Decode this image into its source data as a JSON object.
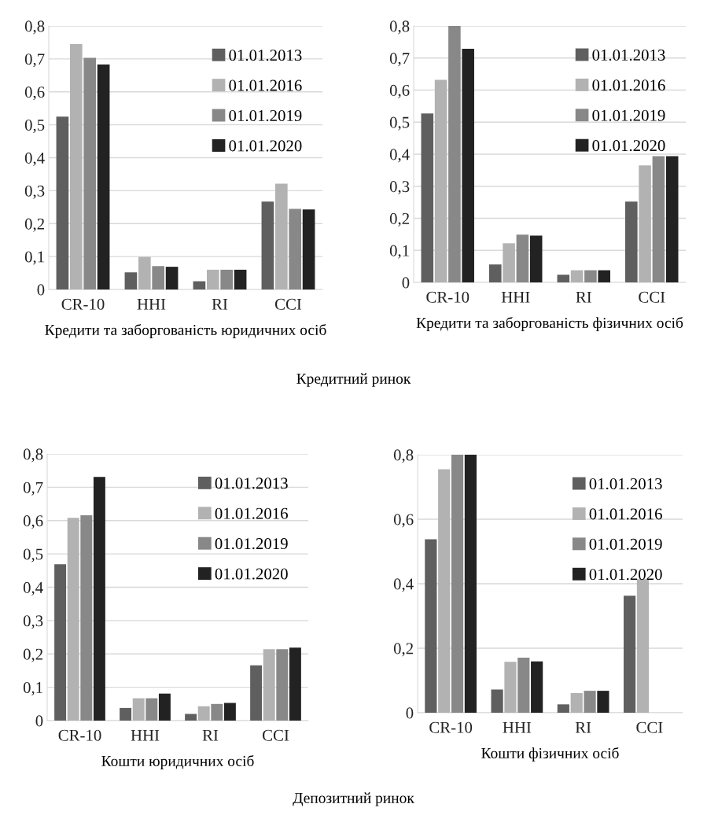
{
  "chart_data": [
    {
      "type": "bar",
      "xlabel": "Кредити та заборгованість юридичних осіб",
      "categories": [
        "CR-10",
        "HHI",
        "RI",
        "CCI"
      ],
      "ylim": [
        0,
        0.8
      ],
      "yticks": [
        {
          "value": 0,
          "label": "0"
        },
        {
          "value": 0.1,
          "label": "0,1"
        },
        {
          "value": 0.2,
          "label": "0,2"
        },
        {
          "value": 0.3,
          "label": "0,3"
        },
        {
          "value": 0.4,
          "label": "0,4"
        },
        {
          "value": 0.5,
          "label": "0,5"
        },
        {
          "value": 0.6,
          "label": "0,6"
        },
        {
          "value": 0.7,
          "label": "0,7"
        },
        {
          "value": 0.8,
          "label": "0,8"
        }
      ],
      "grid": "y",
      "legend": "top right",
      "annotations": [
        "Кредитний ринок"
      ],
      "series": [
        {
          "name": "01.01.2013",
          "color": "#5f5f5f",
          "values": [
            0.525,
            0.052,
            0.025,
            0.267
          ]
        },
        {
          "name": "01.01.2016",
          "color": "#b2b2b2",
          "values": [
            0.745,
            0.099,
            0.06,
            0.321
          ]
        },
        {
          "name": "01.01.2019",
          "color": "#888888",
          "values": [
            0.703,
            0.071,
            0.06,
            0.245
          ]
        },
        {
          "name": "01.01.2020",
          "color": "#222222",
          "values": [
            0.683,
            0.069,
            0.06,
            0.243
          ]
        }
      ]
    },
    {
      "type": "bar",
      "xlabel": "Кредити та заборгованість фізичних осіб",
      "categories": [
        "CR-10",
        "HHI",
        "RI",
        "CCI"
      ],
      "ylim": [
        0,
        0.8
      ],
      "yticks": [
        {
          "value": 0,
          "label": "0"
        },
        {
          "value": 0.1,
          "label": "0,1"
        },
        {
          "value": 0.2,
          "label": "0,2"
        },
        {
          "value": 0.3,
          "label": "0,3"
        },
        {
          "value": 0.4,
          "label": "0,4"
        },
        {
          "value": 0.5,
          "label": "0,5"
        },
        {
          "value": 0.6,
          "label": "0,6"
        },
        {
          "value": 0.7,
          "label": "0,7"
        },
        {
          "value": 0.8,
          "label": "0,8"
        }
      ],
      "grid": "y",
      "legend": "top right",
      "series": [
        {
          "name": "01.01.2013",
          "color": "#5f5f5f",
          "values": [
            0.527,
            0.056,
            0.024,
            0.252
          ]
        },
        {
          "name": "01.01.2016",
          "color": "#b2b2b2",
          "values": [
            0.632,
            0.122,
            0.038,
            0.365
          ]
        },
        {
          "name": "01.01.2019",
          "color": "#888888",
          "values": [
            0.8,
            0.149,
            0.038,
            0.394
          ]
        },
        {
          "name": "01.01.2020",
          "color": "#222222",
          "values": [
            0.729,
            0.146,
            0.038,
            0.394
          ]
        }
      ]
    },
    {
      "type": "bar",
      "xlabel": "Кошти юридичних осіб",
      "categories": [
        "CR-10",
        "HHI",
        "RI",
        "CCI"
      ],
      "ylim": [
        0,
        0.8
      ],
      "yticks": [
        {
          "value": 0,
          "label": "0"
        },
        {
          "value": 0.1,
          "label": "0,1"
        },
        {
          "value": 0.2,
          "label": "0,2"
        },
        {
          "value": 0.3,
          "label": "0,3"
        },
        {
          "value": 0.4,
          "label": "0,4"
        },
        {
          "value": 0.5,
          "label": "0,5"
        },
        {
          "value": 0.6,
          "label": "0,6"
        },
        {
          "value": 0.7,
          "label": "0,7"
        },
        {
          "value": 0.8,
          "label": "0,8"
        }
      ],
      "grid": "y",
      "legend": "top right",
      "annotations": [
        "Депозитний ринок"
      ],
      "series": [
        {
          "name": "01.01.2013",
          "color": "#5f5f5f",
          "values": [
            0.469,
            0.038,
            0.02,
            0.166
          ]
        },
        {
          "name": "01.01.2016",
          "color": "#b2b2b2",
          "values": [
            0.608,
            0.067,
            0.043,
            0.214
          ]
        },
        {
          "name": "01.01.2019",
          "color": "#888888",
          "values": [
            0.616,
            0.067,
            0.05,
            0.214
          ]
        },
        {
          "name": "01.01.2020",
          "color": "#222222",
          "values": [
            0.731,
            0.081,
            0.053,
            0.219
          ]
        }
      ]
    },
    {
      "type": "bar",
      "xlabel": "Кошти фізичних осіб",
      "categories": [
        "CR-10",
        "HHI",
        "RI",
        "CCI"
      ],
      "ylim": [
        0,
        0.8
      ],
      "yticks": [
        {
          "value": 0,
          "label": "0"
        },
        {
          "value": 0.2,
          "label": "0,2"
        },
        {
          "value": 0.4,
          "label": "0,4"
        },
        {
          "value": 0.6,
          "label": "0,6"
        },
        {
          "value": 0.8,
          "label": "0,8"
        }
      ],
      "grid": "y",
      "legend": "top right",
      "series": [
        {
          "name": "01.01.2013",
          "color": "#5f5f5f",
          "values": [
            0.538,
            0.072,
            0.026,
            0.363
          ]
        },
        {
          "name": "01.01.2016",
          "color": "#b2b2b2",
          "values": [
            0.755,
            0.158,
            0.061,
            0.414
          ]
        },
        {
          "name": "01.01.2019",
          "color": "#888888",
          "values": [
            0.8,
            0.171,
            0.068,
            null
          ]
        },
        {
          "name": "01.01.2020",
          "color": "#222222",
          "values": [
            0.8,
            0.159,
            0.068,
            null
          ]
        }
      ]
    }
  ]
}
